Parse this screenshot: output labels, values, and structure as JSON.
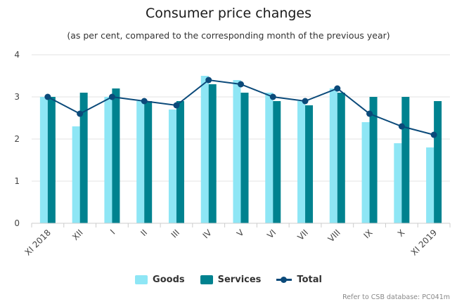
{
  "chart_data": {
    "type": "bar",
    "title": "Consumer price changes",
    "subtitle": "(as per cent, compared to the corresponding month of the previous year)",
    "categories": [
      "XI 2018",
      "XII",
      "I",
      "II",
      "III",
      "IV",
      "V",
      "VI",
      "VII",
      "VIII",
      "IX",
      "X",
      "XI 2019"
    ],
    "series": [
      {
        "name": "Goods",
        "kind": "bar",
        "color": "#8ee6f5",
        "values": [
          3.0,
          2.3,
          3.0,
          2.9,
          2.7,
          3.5,
          3.4,
          3.1,
          2.9,
          3.2,
          2.4,
          1.9,
          1.8
        ]
      },
      {
        "name": "Services",
        "kind": "bar",
        "color": "#00828f",
        "values": [
          3.0,
          3.1,
          3.2,
          2.9,
          2.9,
          3.3,
          3.1,
          2.9,
          2.8,
          3.1,
          3.0,
          3.0,
          2.9
        ]
      },
      {
        "name": "Total",
        "kind": "line",
        "color": "#0b4a7a",
        "values": [
          3.0,
          2.6,
          3.0,
          2.9,
          2.8,
          3.4,
          3.3,
          3.0,
          2.9,
          3.2,
          2.6,
          2.3,
          2.1
        ]
      }
    ],
    "ylim": [
      0,
      4
    ],
    "yticks": [
      "0",
      "1",
      "2",
      "3",
      "4"
    ],
    "grid": true,
    "legend_position": "bottom-center",
    "credit": "Refer to CSB database: PC041m"
  }
}
